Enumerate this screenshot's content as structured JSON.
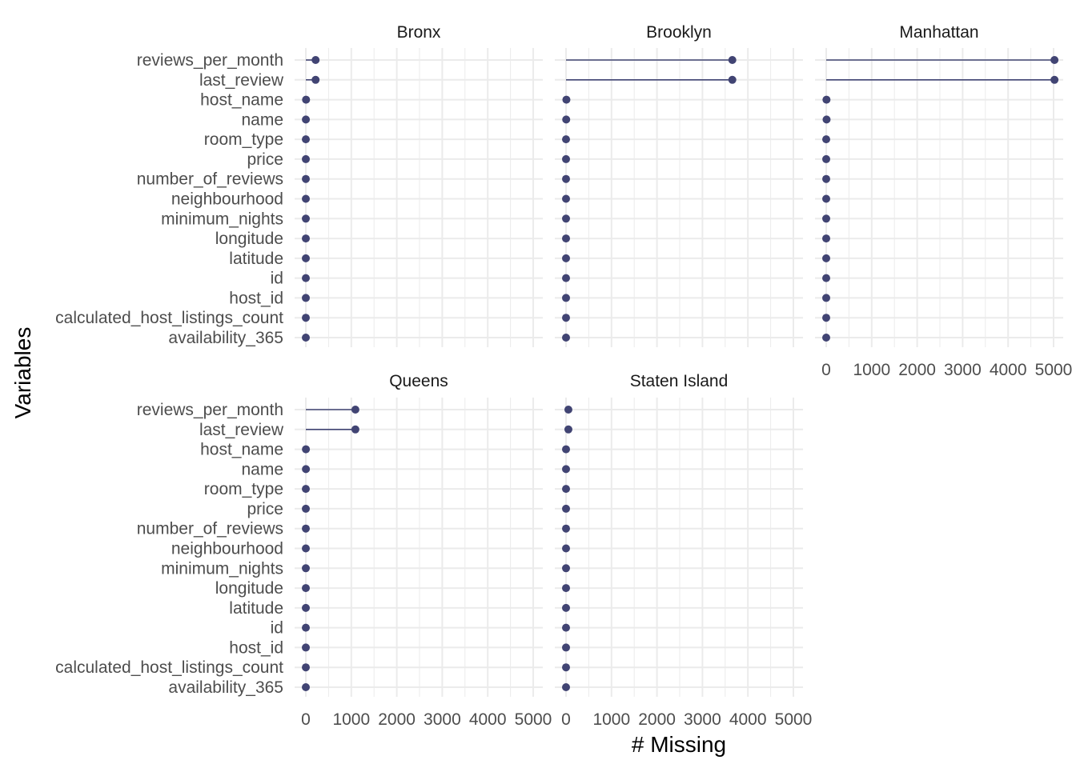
{
  "chart_data": {
    "type": "lollipop",
    "xlabel": "# Missing",
    "ylabel": "Variables",
    "xlim": [
      0,
      5000
    ],
    "x_ticks": [
      0,
      1000,
      2000,
      3000,
      4000,
      5000
    ],
    "grid": true,
    "colors": {
      "mark": "#414473",
      "grid": "#ebebeb",
      "text": "#4d4d4d"
    },
    "variables": [
      "reviews_per_month",
      "last_review",
      "host_name",
      "name",
      "room_type",
      "price",
      "number_of_reviews",
      "neighbourhood",
      "minimum_nights",
      "longitude",
      "latitude",
      "id",
      "host_id",
      "calculated_host_listings_count",
      "availability_365"
    ],
    "panels": [
      {
        "name": "Bronx",
        "values": [
          215,
          215,
          5,
          1,
          0,
          0,
          0,
          0,
          0,
          0,
          0,
          0,
          0,
          0,
          0
        ]
      },
      {
        "name": "Brooklyn",
        "values": [
          3657,
          3657,
          8,
          4,
          0,
          0,
          0,
          0,
          0,
          0,
          0,
          0,
          0,
          0,
          0
        ]
      },
      {
        "name": "Manhattan",
        "values": [
          5020,
          5020,
          6,
          8,
          0,
          0,
          0,
          0,
          0,
          0,
          0,
          0,
          0,
          0,
          0
        ]
      },
      {
        "name": "Queens",
        "values": [
          1090,
          1090,
          2,
          2,
          0,
          0,
          0,
          0,
          0,
          0,
          0,
          0,
          0,
          0,
          0
        ]
      },
      {
        "name": "Staten Island",
        "values": [
          52,
          52,
          0,
          0,
          0,
          0,
          0,
          0,
          0,
          0,
          0,
          0,
          0,
          0,
          0
        ]
      }
    ]
  }
}
